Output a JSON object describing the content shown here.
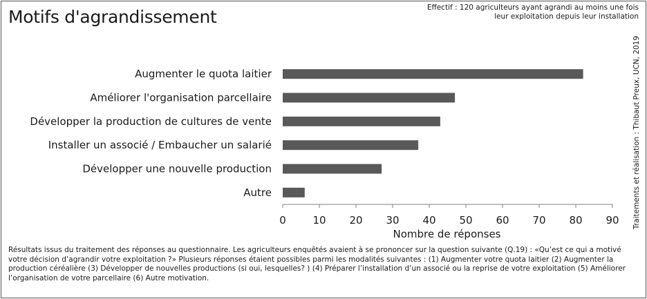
{
  "title": "Motifs d'agrandissement",
  "effectif": "Effectif : 120 agriculteurs ayant agrandi au moins une fois leur exploitation depuis leur installation",
  "credit": "Traitements et réalisation : Thibaut Preux, UCN, 2019",
  "footnote": "Résultats issus du traitement des réponses au questionnaire. Les agriculteurs enquêtés avaient à se prononcer sur la question suivante (Q.19) : «Qu’est ce qui a motivé votre décision d’agrandir votre exploitation ?» Plusieurs réponses étaient possibles parmi les modalités suivantes : (1) Augmenter votre quota laitier (2) Augmenter la production céréalière (3) Développer de nouvelles productions (si oui, lesquelles? ) (4) Préparer l’installation d’un associé ou la reprise de votre exploitation (5) Améliorer l’organisation de votre parcellaire (6) Autre motivation.",
  "chart_data": {
    "type": "bar",
    "orientation": "horizontal",
    "categories": [
      "Augmenter le quota laitier",
      "Améliorer l'organisation parcellaire",
      "Développer la production de cultures de vente",
      "Installer un associé / Embaucher un salarié",
      "Développer une nouvelle production",
      "Autre"
    ],
    "values": [
      82,
      47,
      43,
      37,
      27,
      6
    ],
    "xlabel": "Nombre de réponses",
    "ylabel": "",
    "xlim": [
      0,
      90
    ],
    "xticks": [
      "0",
      "10",
      "20",
      "30",
      "40",
      "50",
      "60",
      "70",
      "80",
      "90"
    ],
    "grid": false,
    "bar_color": "#595959"
  }
}
